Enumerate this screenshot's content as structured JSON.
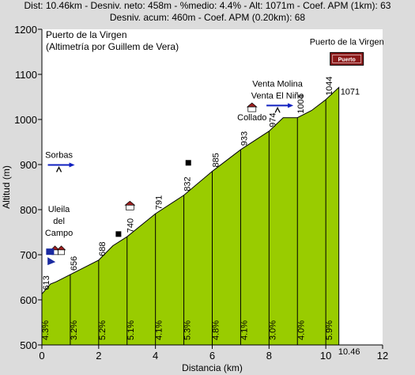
{
  "header": {
    "line1": "Dist: 10.46km - Desniv. neto: 458m - %medio: 4.4% - Alt: 1071m - Coef. APM (1km): 63",
    "line2": "Desniv. acum: 460m - Coef. APM (0.20km): 68"
  },
  "chart_data": {
    "type": "area",
    "title": "Puerto de la Virgen",
    "subtitle": "(Altimetría por Guillem de Vera)",
    "xlabel": "Distancia (km)",
    "ylabel": "Altitud (m)",
    "xlim": [
      0,
      12
    ],
    "ylim": [
      500,
      1200
    ],
    "x_ticks": [
      "0",
      "2",
      "4",
      "6",
      "8",
      "10",
      "12"
    ],
    "y_ticks": [
      "500",
      "600",
      "700",
      "800",
      "900",
      "1000",
      "1100",
      "1200"
    ],
    "end_distance_label": "10.46",
    "fill_color": "#99cc00",
    "profile": {
      "x": [
        0,
        0.3,
        0.5,
        1,
        2,
        2.5,
        3,
        4,
        5,
        6,
        7,
        8,
        8.5,
        9,
        9.5,
        10,
        10.46
      ],
      "y": [
        613,
        635,
        640,
        656,
        688,
        720,
        740,
        791,
        832,
        885,
        933,
        974,
        1004,
        1004,
        1020,
        1044,
        1071
      ]
    },
    "km_markers": [
      {
        "km": 0,
        "alt": 613,
        "label": "613"
      },
      {
        "km": 1,
        "alt": 656,
        "label": "656"
      },
      {
        "km": 2,
        "alt": 688,
        "label": "688"
      },
      {
        "km": 3,
        "alt": 740,
        "label": "740"
      },
      {
        "km": 4,
        "alt": 791,
        "label": "791"
      },
      {
        "km": 5,
        "alt": 832,
        "label": "832"
      },
      {
        "km": 6,
        "alt": 885,
        "label": "885"
      },
      {
        "km": 7,
        "alt": 933,
        "label": "933"
      },
      {
        "km": 8,
        "alt": 974,
        "label": "974"
      },
      {
        "km": 9,
        "alt": 1004,
        "label": "1004"
      },
      {
        "km": 10,
        "alt": 1044,
        "label": "1044"
      }
    ],
    "summit_label": "1071",
    "gradients": [
      {
        "from": 0,
        "to": 1,
        "label": "4.3%"
      },
      {
        "from": 1,
        "to": 2,
        "label": "3.2%"
      },
      {
        "from": 2,
        "to": 3,
        "label": "5.2%"
      },
      {
        "from": 3,
        "to": 4,
        "label": "5.1%"
      },
      {
        "from": 4,
        "to": 5,
        "label": "4.1%"
      },
      {
        "from": 5,
        "to": 6,
        "label": "5.3%"
      },
      {
        "from": 6,
        "to": 7,
        "label": "4.8%"
      },
      {
        "from": 7,
        "to": 8,
        "label": "4.1%"
      },
      {
        "from": 8,
        "to": 9,
        "label": "3.0%"
      },
      {
        "from": 9,
        "to": 10,
        "label": "4.0%"
      },
      {
        "from": 10,
        "to": 10.46,
        "label": "5.9%"
      }
    ],
    "annotations": [
      {
        "text": "Sorbas",
        "km": 0.6,
        "alt": 915,
        "icon": "junction-arrow-icon"
      },
      {
        "text": "Uleila\ndel\nCampo",
        "km": 0.6,
        "alt": 795,
        "icon": "village-icon"
      },
      {
        "text": "Collado",
        "km": 7.4,
        "alt": 998,
        "icon": "pass-house-icon"
      },
      {
        "text": "Venta Molina\nVenta El Niño",
        "km": 8.3,
        "alt": 1073,
        "icon": "junction-arrow-icon"
      },
      {
        "text": "Puerto de la Virgen",
        "km": 10.6,
        "alt": 1166,
        "icon": "summit-sign-icon"
      }
    ],
    "sign_text": "Puerto",
    "grid": false
  }
}
